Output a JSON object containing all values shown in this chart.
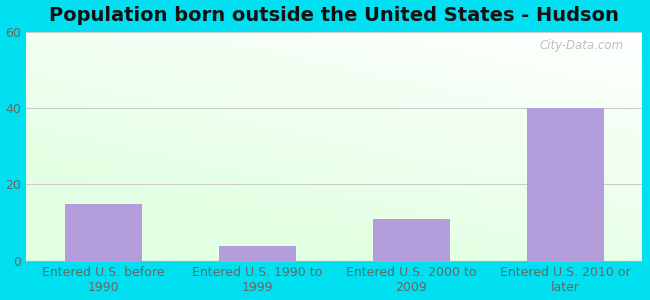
{
  "title": "Population born outside the United States - Hudson",
  "categories": [
    "Entered U.S. before\n1990",
    "Entered U.S. 1990 to\n1999",
    "Entered U.S. 2000 to\n2009",
    "Entered U.S. 2010 or\nlater"
  ],
  "values": [
    15,
    4,
    11,
    40
  ],
  "bar_color": "#b39ddb",
  "ylim": [
    0,
    60
  ],
  "yticks": [
    0,
    20,
    40,
    60
  ],
  "bg_outer": "#00e0f0",
  "watermark": "City-Data.com",
  "title_fontsize": 14,
  "tick_label_fontsize": 9,
  "bar_width": 0.5,
  "grid_color": "#cccccc",
  "tick_color": "#666666",
  "gradient_top_color": "#e8f5e9",
  "gradient_bottom_color": "#ffffff"
}
